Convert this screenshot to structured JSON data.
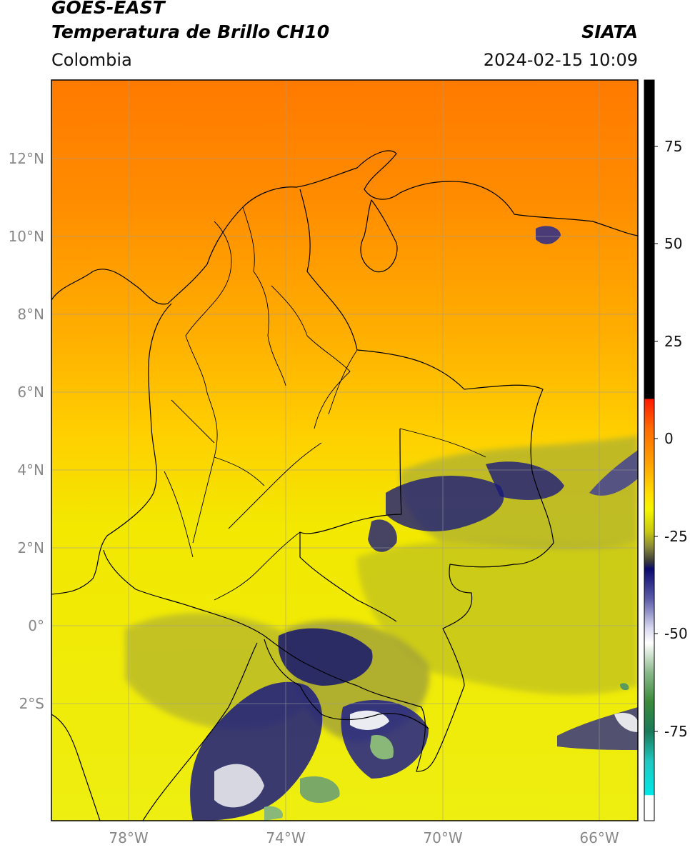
{
  "header": {
    "title_line1": "GOES-EAST",
    "title_line2": "Temperatura de Brillo CH10",
    "agency": "SIATA",
    "region": "Colombia",
    "timestamp": "2024-02-15 10:09"
  },
  "map": {
    "lon_range": [
      -80,
      -65
    ],
    "lat_range": [
      -5.2,
      14
    ],
    "lat_ticks": [
      {
        "value": 12,
        "label": "12°N"
      },
      {
        "value": 10,
        "label": "10°N"
      },
      {
        "value": 8,
        "label": "8°N"
      },
      {
        "value": 6,
        "label": "6°N"
      },
      {
        "value": 4,
        "label": "4°N"
      },
      {
        "value": 2,
        "label": "2°N"
      },
      {
        "value": 0,
        "label": "0°"
      },
      {
        "value": -2,
        "label": "2°S"
      }
    ],
    "lon_ticks": [
      {
        "value": -78,
        "label": "78°W"
      },
      {
        "value": -74,
        "label": "74°W"
      },
      {
        "value": -70,
        "label": "70°W"
      },
      {
        "value": -66,
        "label": "66°W"
      }
    ]
  },
  "colorbar": {
    "range": [
      -95,
      90
    ],
    "ticks": [
      {
        "value": 75,
        "label": "75"
      },
      {
        "value": 50,
        "label": "50"
      },
      {
        "value": 25,
        "label": "25"
      },
      {
        "value": 0,
        "label": "0"
      },
      {
        "value": -25,
        "label": "-25"
      },
      {
        "value": -50,
        "label": "-50"
      },
      {
        "value": -75,
        "label": "-75"
      }
    ],
    "colors": {
      "black": "#000000",
      "red": "#ff2a00",
      "orange": "#ff8c00",
      "yellow": "#f5f500",
      "olive": "#9a9a2a",
      "navy": "#0a0a6e",
      "white": "#ffffff",
      "green": "#3a8a3a",
      "cyan": "#00d8d8"
    }
  }
}
